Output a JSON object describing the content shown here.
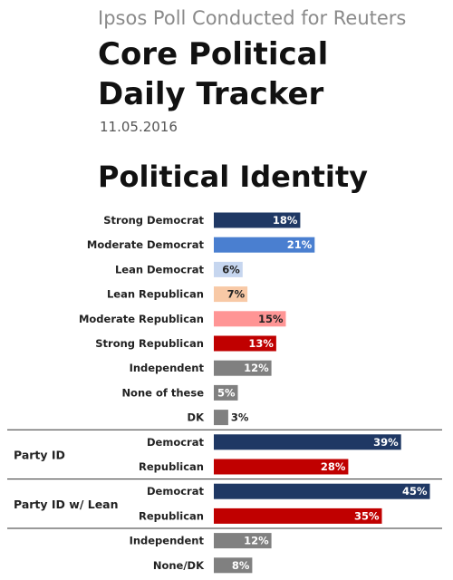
{
  "header": {
    "subtitle": "Ipsos Poll Conducted for Reuters",
    "title_line1": "Core Political",
    "title_line2": "Daily Tracker",
    "date": "11.05.2016"
  },
  "section_title": "Political Identity",
  "chart_data": {
    "type": "bar",
    "orientation": "horizontal",
    "title": "Political Identity",
    "unit": "%",
    "xlim": [
      0,
      45
    ],
    "grid": false,
    "groups": [
      {
        "name": "",
        "items": [
          {
            "category": "Strong Democrat",
            "value": 18,
            "color": "#1f3864"
          },
          {
            "category": "Moderate Democrat",
            "value": 21,
            "color": "#4a7fd0"
          },
          {
            "category": "Lean Democrat",
            "value": 6,
            "color": "#c6d6ef"
          },
          {
            "category": "Lean Republican",
            "value": 7,
            "color": "#f8c9a6"
          },
          {
            "category": "Moderate Republican",
            "value": 15,
            "color": "#ff9595"
          },
          {
            "category": "Strong Republican",
            "value": 13,
            "color": "#c00000"
          },
          {
            "category": "Independent",
            "value": 12,
            "color": "#808080"
          },
          {
            "category": "None of these",
            "value": 5,
            "color": "#808080"
          },
          {
            "category": "DK",
            "value": 3,
            "color": "#808080"
          }
        ]
      },
      {
        "name": "Party ID",
        "items": [
          {
            "category": "Democrat",
            "value": 39,
            "color": "#1f3864"
          },
          {
            "category": "Republican",
            "value": 28,
            "color": "#c00000"
          }
        ]
      },
      {
        "name": "Party ID w/ Lean",
        "items": [
          {
            "category": "Democrat",
            "value": 45,
            "color": "#1f3864"
          },
          {
            "category": "Republican",
            "value": 35,
            "color": "#c00000"
          },
          {
            "category": "Independent",
            "value": 12,
            "color": "#808080"
          },
          {
            "category": "None/DK",
            "value": 8,
            "color": "#808080"
          }
        ]
      }
    ]
  }
}
